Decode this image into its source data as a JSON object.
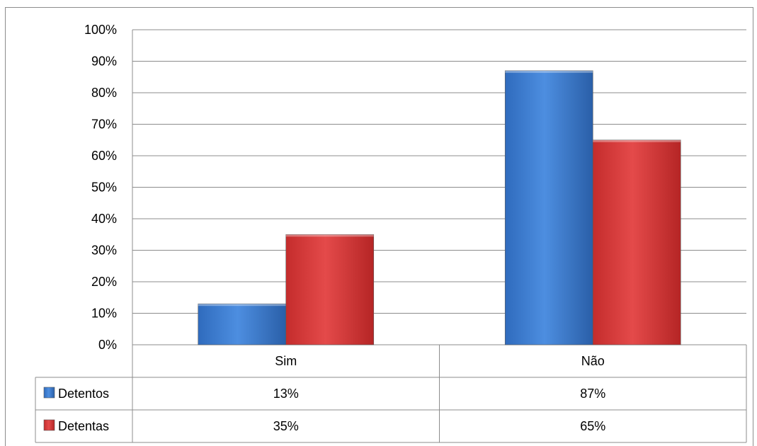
{
  "chart_data": {
    "type": "bar",
    "title": "",
    "xlabel": "",
    "ylabel": "",
    "categories": [
      "Sim",
      "Não"
    ],
    "series": [
      {
        "name": "Detentos",
        "values": [
          13,
          87
        ],
        "labels": [
          "13%",
          "87%"
        ],
        "color": "#3f7fd0"
      },
      {
        "name": "Detentas",
        "values": [
          35,
          65
        ],
        "labels": [
          "35%",
          "65%"
        ],
        "color": "#d93a3a"
      }
    ],
    "ylim": [
      0,
      100
    ],
    "yticks": [
      "0%",
      "10%",
      "20%",
      "30%",
      "40%",
      "50%",
      "60%",
      "70%",
      "80%",
      "90%",
      "100%"
    ],
    "grid": true,
    "legend": "data-table-bottom"
  }
}
